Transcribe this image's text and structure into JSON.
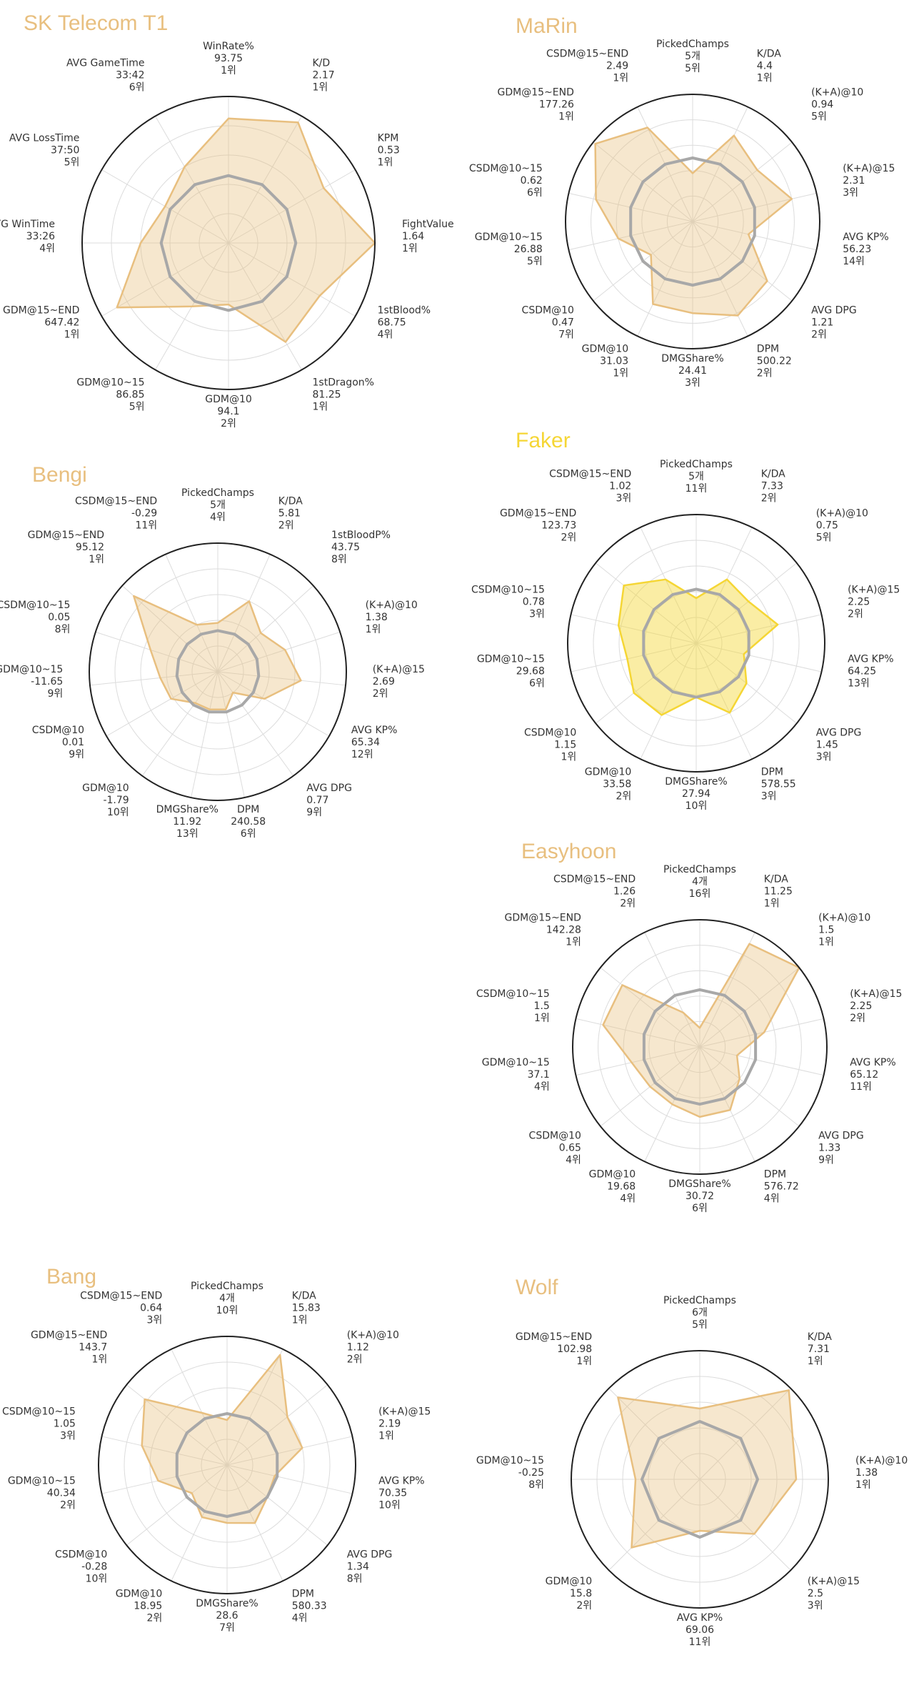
{
  "chart_data": [
    {
      "type": "radar",
      "title": "SK Telecom T1",
      "color": "#E8BF7F",
      "axes": [
        {
          "label": "WinRate%",
          "value": "93.75",
          "rank": "1위"
        },
        {
          "label": "K/D",
          "value": "2.17",
          "rank": "1위"
        },
        {
          "label": "KPM",
          "value": "0.53",
          "rank": "1위"
        },
        {
          "label": "FightValue",
          "value": "1.64",
          "rank": "1위"
        },
        {
          "label": "1stBlood%",
          "value": "68.75",
          "rank": "4위"
        },
        {
          "label": "1stDragon%",
          "value": "81.25",
          "rank": "1위"
        },
        {
          "label": "GDM@10",
          "value": "94.1",
          "rank": "2위"
        },
        {
          "label": "GDM@10~15",
          "value": "86.85",
          "rank": "5위"
        },
        {
          "label": "GDM@15~END",
          "value": "647.42",
          "rank": "1위"
        },
        {
          "label": "AVG WinTime",
          "value": "33:26",
          "rank": "4위"
        },
        {
          "label": "AVG LossTime",
          "value": "37:50",
          "rank": "5위"
        },
        {
          "label": "AVG GameTime",
          "value": "33:42",
          "rank": "6위"
        }
      ],
      "series": [
        {
          "values": [
            0.85,
            0.95,
            0.75,
            1.0,
            0.72,
            0.78,
            0.42,
            0.5,
            0.88,
            0.6,
            0.5,
            0.6
          ]
        },
        {
          "values": [
            0.46,
            0.46,
            0.46,
            0.46,
            0.46,
            0.46,
            0.46,
            0.46,
            0.46,
            0.46,
            0.46,
            0.46
          ]
        }
      ]
    },
    {
      "type": "radar",
      "title": "MaRin",
      "color": "#E8BF7F",
      "axes": [
        {
          "label": "PickedChamps",
          "value": "5개",
          "rank": "5위"
        },
        {
          "label": "K/DA",
          "value": "4.4",
          "rank": "1위"
        },
        {
          "label": "(K+A)@10",
          "value": "0.94",
          "rank": "5위"
        },
        {
          "label": "(K+A)@15",
          "value": "2.31",
          "rank": "3위"
        },
        {
          "label": "AVG KP%",
          "value": "56.23",
          "rank": "14위"
        },
        {
          "label": "AVG DPG",
          "value": "1.21",
          "rank": "2위"
        },
        {
          "label": "DPM",
          "value": "500.22",
          "rank": "2위"
        },
        {
          "label": "DMGShare%",
          "value": "24.41",
          "rank": "3위"
        },
        {
          "label": "GDM@10",
          "value": "31.03",
          "rank": "1위"
        },
        {
          "label": "CSDM@10",
          "value": "0.47",
          "rank": "7위"
        },
        {
          "label": "GDM@10~15",
          "value": "26.88",
          "rank": "5위"
        },
        {
          "label": "CSDM@10~15",
          "value": "0.62",
          "rank": "6위"
        },
        {
          "label": "GDM@15~END",
          "value": "177.26",
          "rank": "1위"
        },
        {
          "label": "CSDM@15~END",
          "value": "2.49",
          "rank": "1위"
        }
      ],
      "series": [
        {
          "values": [
            0.38,
            0.75,
            0.65,
            0.8,
            0.45,
            0.75,
            0.82,
            0.72,
            0.72,
            0.42,
            0.6,
            0.78,
            0.98,
            0.82
          ]
        },
        {
          "values": [
            0.5,
            0.5,
            0.5,
            0.5,
            0.5,
            0.5,
            0.5,
            0.5,
            0.5,
            0.5,
            0.5,
            0.5,
            0.5,
            0.5
          ]
        }
      ]
    },
    {
      "type": "radar",
      "title": "Bengi",
      "color": "#E8BF7F",
      "axes": [
        {
          "label": "PickedChamps",
          "value": "5개",
          "rank": "4위"
        },
        {
          "label": "K/DA",
          "value": "5.81",
          "rank": "2위"
        },
        {
          "label": "1stBloodP%",
          "value": "43.75",
          "rank": "8위"
        },
        {
          "label": "(K+A)@10",
          "value": "1.38",
          "rank": "1위"
        },
        {
          "label": "(K+A)@15",
          "value": "2.69",
          "rank": "2위"
        },
        {
          "label": "AVG KP%",
          "value": "65.34",
          "rank": "12위"
        },
        {
          "label": "AVG DPG",
          "value": "0.77",
          "rank": "9위"
        },
        {
          "label": "DPM",
          "value": "240.58",
          "rank": "6위"
        },
        {
          "label": "DMGShare%",
          "value": "11.92",
          "rank": "13위"
        },
        {
          "label": "GDM@10",
          "value": "-1.79",
          "rank": "10위"
        },
        {
          "label": "CSDM@10",
          "value": "0.01",
          "rank": "9위"
        },
        {
          "label": "GDM@10~15",
          "value": "-11.65",
          "rank": "9위"
        },
        {
          "label": "CSDM@10~15",
          "value": "0.05",
          "rank": "8위"
        },
        {
          "label": "GDM@15~END",
          "value": "95.12",
          "rank": "1위"
        },
        {
          "label": "CSDM@15~END",
          "value": "-0.29",
          "rank": "11위"
        }
      ],
      "series": [
        {
          "values": [
            0.38,
            0.6,
            0.45,
            0.55,
            0.65,
            0.42,
            0.2,
            0.3,
            0.3,
            0.3,
            0.42,
            0.45,
            0.55,
            0.88,
            0.4
          ]
        },
        {
          "values": [
            0.32,
            0.32,
            0.32,
            0.32,
            0.32,
            0.32,
            0.32,
            0.32,
            0.32,
            0.32,
            0.32,
            0.32,
            0.32,
            0.32,
            0.32
          ]
        }
      ]
    },
    {
      "type": "radar",
      "title": "Faker",
      "color": "#F5D635",
      "axes": [
        {
          "label": "PickedChamps",
          "value": "5개",
          "rank": "11위"
        },
        {
          "label": "K/DA",
          "value": "7.33",
          "rank": "2위"
        },
        {
          "label": "(K+A)@10",
          "value": "0.75",
          "rank": "5위"
        },
        {
          "label": "(K+A)@15",
          "value": "2.25",
          "rank": "2위"
        },
        {
          "label": "AVG KP%",
          "value": "64.25",
          "rank": "13위"
        },
        {
          "label": "AVG DPG",
          "value": "1.45",
          "rank": "3위"
        },
        {
          "label": "DPM",
          "value": "578.55",
          "rank": "3위"
        },
        {
          "label": "DMGShare%",
          "value": "27.94",
          "rank": "10위"
        },
        {
          "label": "GDM@10",
          "value": "33.58",
          "rank": "2위"
        },
        {
          "label": "CSDM@10",
          "value": "1.15",
          "rank": "1위"
        },
        {
          "label": "GDM@10~15",
          "value": "29.68",
          "rank": "6위"
        },
        {
          "label": "CSDM@10~15",
          "value": "0.78",
          "rank": "3위"
        },
        {
          "label": "GDM@15~END",
          "value": "123.73",
          "rank": "2위"
        },
        {
          "label": "CSDM@15~END",
          "value": "1.02",
          "rank": "3위"
        }
      ],
      "series": [
        {
          "values": [
            0.35,
            0.55,
            0.52,
            0.65,
            0.38,
            0.5,
            0.6,
            0.42,
            0.62,
            0.62,
            0.55,
            0.62,
            0.72,
            0.55
          ]
        },
        {
          "values": [
            0.42,
            0.42,
            0.42,
            0.42,
            0.42,
            0.42,
            0.42,
            0.42,
            0.42,
            0.42,
            0.42,
            0.42,
            0.42,
            0.42
          ]
        }
      ]
    },
    {
      "type": "radar",
      "title": "Easyhoon",
      "color": "#E8BF7F",
      "axes": [
        {
          "label": "PickedChamps",
          "value": "4개",
          "rank": "16위"
        },
        {
          "label": "K/DA",
          "value": "11.25",
          "rank": "1위"
        },
        {
          "label": "(K+A)@10",
          "value": "1.5",
          "rank": "1위"
        },
        {
          "label": "(K+A)@15",
          "value": "2.25",
          "rank": "2위"
        },
        {
          "label": "AVG KP%",
          "value": "65.12",
          "rank": "11위"
        },
        {
          "label": "AVG DPG",
          "value": "1.33",
          "rank": "9위"
        },
        {
          "label": "DPM",
          "value": "576.72",
          "rank": "4위"
        },
        {
          "label": "DMGShare%",
          "value": "30.72",
          "rank": "6위"
        },
        {
          "label": "GDM@10",
          "value": "19.68",
          "rank": "4위"
        },
        {
          "label": "CSDM@10",
          "value": "0.65",
          "rank": "4위"
        },
        {
          "label": "GDM@10~15",
          "value": "37.1",
          "rank": "4위"
        },
        {
          "label": "CSDM@10~15",
          "value": "1.5",
          "rank": "1위"
        },
        {
          "label": "GDM@15~END",
          "value": "142.28",
          "rank": "1위"
        },
        {
          "label": "CSDM@15~END",
          "value": "1.26",
          "rank": "2위"
        }
      ],
      "series": [
        {
          "values": [
            0.15,
            0.9,
            1.0,
            0.52,
            0.3,
            0.4,
            0.55,
            0.55,
            0.5,
            0.5,
            0.55,
            0.78,
            0.78,
            0.3
          ]
        },
        {
          "values": [
            0.45,
            0.45,
            0.45,
            0.45,
            0.45,
            0.45,
            0.45,
            0.45,
            0.45,
            0.45,
            0.45,
            0.45,
            0.45,
            0.45
          ]
        }
      ]
    },
    {
      "type": "radar",
      "title": "Bang",
      "color": "#E8BF7F",
      "axes": [
        {
          "label": "PickedChamps",
          "value": "4개",
          "rank": "10위"
        },
        {
          "label": "K/DA",
          "value": "15.83",
          "rank": "1위"
        },
        {
          "label": "(K+A)@10",
          "value": "1.12",
          "rank": "2위"
        },
        {
          "label": "(K+A)@15",
          "value": "2.19",
          "rank": "1위"
        },
        {
          "label": "AVG KP%",
          "value": "70.35",
          "rank": "10위"
        },
        {
          "label": "AVG DPG",
          "value": "1.34",
          "rank": "8위"
        },
        {
          "label": "DPM",
          "value": "580.33",
          "rank": "4위"
        },
        {
          "label": "DMGShare%",
          "value": "28.6",
          "rank": "7위"
        },
        {
          "label": "GDM@10",
          "value": "18.95",
          "rank": "2위"
        },
        {
          "label": "CSDM@10",
          "value": "-0.28",
          "rank": "10위"
        },
        {
          "label": "GDM@10~15",
          "value": "40.34",
          "rank": "2위"
        },
        {
          "label": "CSDM@10~15",
          "value": "1.05",
          "rank": "3위"
        },
        {
          "label": "GDM@15~END",
          "value": "143.7",
          "rank": "1위"
        },
        {
          "label": "CSDM@15~END",
          "value": "0.64",
          "rank": "3위"
        }
      ],
      "series": [
        {
          "values": [
            0.35,
            0.95,
            0.6,
            0.6,
            0.38,
            0.4,
            0.5,
            0.45,
            0.45,
            0.35,
            0.55,
            0.68,
            0.82,
            0.45
          ]
        },
        {
          "values": [
            0.4,
            0.4,
            0.4,
            0.4,
            0.4,
            0.4,
            0.4,
            0.4,
            0.4,
            0.4,
            0.4,
            0.4,
            0.4,
            0.4
          ]
        }
      ]
    },
    {
      "type": "radar",
      "title": "Wolf",
      "color": "#E8BF7F",
      "axes": [
        {
          "label": "PickedChamps",
          "value": "6개",
          "rank": "5위"
        },
        {
          "label": "K/DA",
          "value": "7.31",
          "rank": "1위"
        },
        {
          "label": "(K+A)@10",
          "value": "1.38",
          "rank": "1위"
        },
        {
          "label": "(K+A)@15",
          "value": "2.5",
          "rank": "3위"
        },
        {
          "label": "AVG KP%",
          "value": "69.06",
          "rank": "11위"
        },
        {
          "label": "GDM@10",
          "value": "15.8",
          "rank": "2위"
        },
        {
          "label": "GDM@10~15",
          "value": "-0.25",
          "rank": "8위"
        },
        {
          "label": "GDM@15~END",
          "value": "102.98",
          "rank": "1위"
        }
      ],
      "series": [
        {
          "values": [
            0.55,
            0.98,
            0.75,
            0.6,
            0.4,
            0.75,
            0.5,
            0.9
          ]
        },
        {
          "values": [
            0.45,
            0.45,
            0.45,
            0.45,
            0.45,
            0.45,
            0.45,
            0.45
          ]
        }
      ]
    }
  ]
}
